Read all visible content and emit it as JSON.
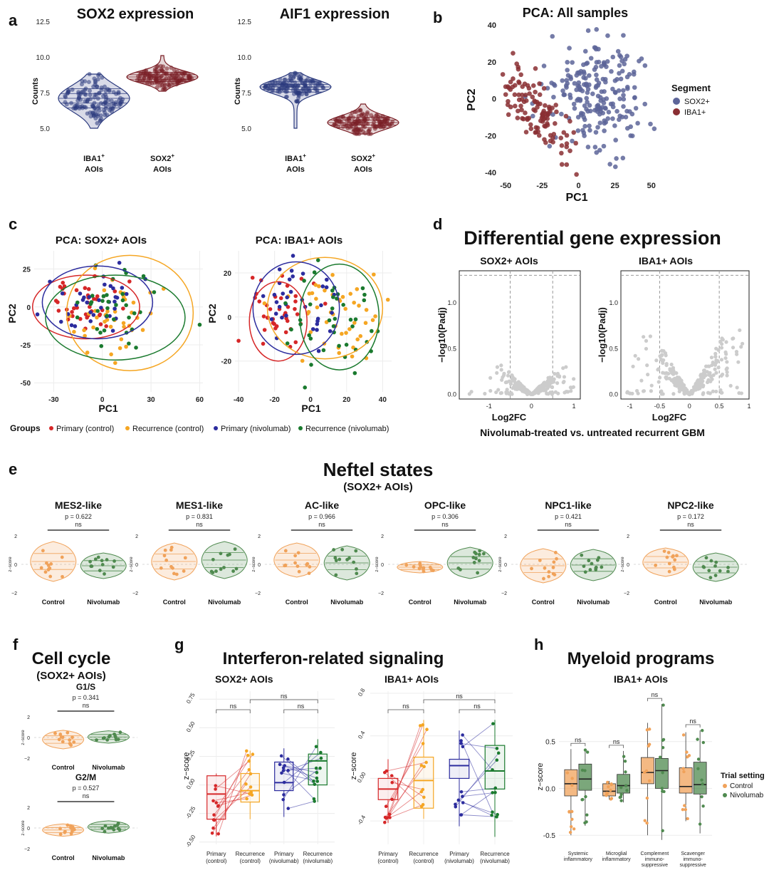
{
  "colors": {
    "navy": "#2b3a7e",
    "maroon": "#7a1f26",
    "pca_sox2": "#5d6599",
    "pca_iba1": "#8a2f33",
    "primary_control": "#d62728",
    "recurrence_control": "#f5a623",
    "primary_nivolumab": "#2c2c9e",
    "recurrence_nivolumab": "#1a7a2e",
    "control": "#f0a25a",
    "nivolumab": "#4f8a4f",
    "volcano_points": "#cccccc"
  },
  "panels": {
    "a": {
      "letter": "a",
      "yaxis_label": "Counts",
      "y_ticks": [
        "5.0",
        "7.5",
        "10.0",
        "12.5"
      ],
      "plots": [
        {
          "title": "SOX2 expression",
          "groups": [
            {
              "label": "IBA1",
              "sup": "+",
              "sub": "AOIs"
            },
            {
              "label": "SOX2",
              "sup": "+",
              "sub": "AOIs"
            }
          ]
        },
        {
          "title": "AIF1 expression",
          "groups": [
            {
              "label": "IBA1",
              "sup": "+",
              "sub": "AOIs"
            },
            {
              "label": "SOX2",
              "sup": "+",
              "sub": "AOIs"
            }
          ]
        }
      ]
    },
    "b": {
      "letter": "b",
      "legend_title": "Segment",
      "legend_items": [
        "SOX2+",
        "IBA1+"
      ]
    },
    "c": {
      "letter": "c",
      "groups_title": "Groups",
      "groups": [
        "Primary (control)",
        "Recurrence (control)",
        "Primary (nivolumab)",
        "Recurrence (nivolumab)"
      ]
    },
    "d": {
      "letter": "d",
      "title": "Differential gene expression",
      "subtitle": "Nivolumab-treated vs. untreated recurrent GBM"
    },
    "e": {
      "letter": "e",
      "title": "Neftel states",
      "subtitle": "(SOX2+ AOIs)",
      "yaxis_label": "z−score",
      "y_ticks": [
        "2",
        "0",
        "−2"
      ],
      "x_labels": [
        "Control",
        "Nivolumab"
      ],
      "states": [
        {
          "name": "MES2-like",
          "p": "p = 0.622",
          "sig": "ns"
        },
        {
          "name": "MES1-like",
          "p": "p = 0.831",
          "sig": "ns"
        },
        {
          "name": "AC-like",
          "p": "p = 0.966",
          "sig": "ns"
        },
        {
          "name": "OPC-like",
          "p": "p = 0.306",
          "sig": "ns"
        },
        {
          "name": "NPC1-like",
          "p": "p = 0.421",
          "sig": "ns"
        },
        {
          "name": "NPC2-like",
          "p": "p = 0.172",
          "sig": "ns"
        }
      ]
    },
    "f": {
      "letter": "f",
      "title": "Cell cycle",
      "subtitle": "(SOX2+ AOIs)",
      "yaxis_label": "z−score",
      "y_ticks": [
        "2",
        "0",
        "−2"
      ],
      "x_labels": [
        "Control",
        "Nivolumab"
      ],
      "phases": [
        {
          "name": "G1/S",
          "p": "p = 0.341",
          "sig": "ns"
        },
        {
          "name": "G2/M",
          "p": "p = 0.527",
          "sig": "ns"
        }
      ]
    },
    "g": {
      "letter": "g",
      "title": "Interferon-related signaling",
      "yaxis_label": "z−score",
      "x_labels": [
        [
          "Primary",
          "(control)"
        ],
        [
          "Recurrence",
          "(control)"
        ],
        [
          "Primary",
          "(nivolumab)"
        ],
        [
          "Recurrence",
          "(nivolumab)"
        ]
      ],
      "sig": "ns"
    },
    "h": {
      "letter": "h",
      "title": "Myeloid programs",
      "subtitle": "IBA1+ AOIs",
      "yaxis_label": "z−score",
      "legend_title": "Trial setting",
      "legend_items": [
        "Control",
        "Nivolumab"
      ],
      "sig": "ns",
      "categories": [
        [
          "Systemic",
          "inflammatory"
        ],
        [
          "Microglial",
          "inflammatory"
        ],
        [
          "Complement",
          "immuno-",
          "suppressive"
        ],
        [
          "Scavenger",
          "immuno-",
          "suppressive"
        ]
      ]
    }
  },
  "chart_data": [
    {
      "id": "a1",
      "type": "violin",
      "title": "SOX2 expression",
      "ylabel": "Counts",
      "ylim": [
        4.5,
        12.5
      ],
      "categories": [
        "IBA1+ AOIs",
        "SOX2+ AOIs"
      ],
      "series": [
        {
          "name": "IBA1+ AOIs",
          "color": "#2b3a7e",
          "center": 7.1,
          "spread": 0.75,
          "min": 5.0,
          "max": 8.8
        },
        {
          "name": "SOX2+ AOIs",
          "color": "#7a1f26",
          "center": 8.6,
          "spread": 0.35,
          "min": 7.6,
          "max": 10.1
        }
      ]
    },
    {
      "id": "a2",
      "type": "violin",
      "title": "AIF1 expression",
      "ylabel": "Counts",
      "ylim": [
        4.5,
        12.5
      ],
      "categories": [
        "IBA1+ AOIs",
        "SOX2+ AOIs"
      ],
      "series": [
        {
          "name": "IBA1+ AOIs",
          "color": "#2b3a7e",
          "center": 7.9,
          "spread": 0.4,
          "min": 5.0,
          "max": 8.9
        },
        {
          "name": "SOX2+ AOIs",
          "color": "#7a1f26",
          "center": 5.4,
          "spread": 0.4,
          "min": 4.6,
          "max": 6.7
        }
      ]
    },
    {
      "id": "b",
      "type": "scatter",
      "title": "PCA: All samples",
      "xlabel": "PC1",
      "ylabel": "PC2",
      "xlim": [
        -55,
        55
      ],
      "ylim": [
        -43,
        42
      ],
      "x_ticks": [
        -50,
        -25,
        0,
        25,
        50
      ],
      "y_ticks": [
        -40,
        -20,
        0,
        20,
        40
      ],
      "series": [
        {
          "name": "SOX2+",
          "color": "#5d6599",
          "n": 220,
          "cx": 15,
          "cy": 2,
          "sx": 16,
          "sy": 15
        },
        {
          "name": "IBA1+",
          "color": "#8a2f33",
          "n": 120,
          "cx": -28,
          "cy": -8,
          "sx": 11,
          "sy": 16
        }
      ]
    },
    {
      "id": "c1",
      "type": "scatter",
      "title": "PCA: SOX2+ AOIs",
      "xlabel": "PC1",
      "ylabel": "PC2",
      "xlim": [
        -42,
        62
      ],
      "ylim": [
        -56,
        37
      ],
      "x_ticks": [
        -30,
        0,
        30,
        60
      ],
      "y_ticks": [
        -50,
        -25,
        0,
        25
      ],
      "series": [
        {
          "name": "Primary (control)",
          "color": "#d62728",
          "n": 40,
          "cx": -12,
          "cy": 2,
          "sx": 12,
          "sy": 9
        },
        {
          "name": "Recurrence (control)",
          "color": "#f5a623",
          "n": 40,
          "cx": 8,
          "cy": -8,
          "sx": 17,
          "sy": 15
        },
        {
          "name": "Primary (nivolumab)",
          "color": "#2c2c9e",
          "n": 35,
          "cx": -5,
          "cy": 2,
          "sx": 14,
          "sy": 11
        },
        {
          "name": "Recurrence (nivolumab)",
          "color": "#1a7a2e",
          "n": 35,
          "cx": 5,
          "cy": -3,
          "sx": 17,
          "sy": 13
        }
      ],
      "ellipses": [
        {
          "series": "Primary (control)",
          "cx": -10,
          "cy": 0,
          "rx": 33,
          "ry": 21
        },
        {
          "series": "Recurrence (control)",
          "cx": 17,
          "cy": -4,
          "rx": 39,
          "ry": 38
        },
        {
          "series": "Primary (nivolumab)",
          "cx": -3,
          "cy": 3,
          "rx": 34,
          "ry": 24
        },
        {
          "series": "Recurrence (nivolumab)",
          "cx": 8,
          "cy": -7,
          "rx": 43,
          "ry": 28
        }
      ]
    },
    {
      "id": "c2",
      "type": "scatter",
      "title": "PCA: IBA1+ AOIs",
      "xlabel": "PC1",
      "ylabel": "PC2",
      "xlim": [
        -42,
        45
      ],
      "ylim": [
        -34,
        30
      ],
      "x_ticks": [
        -40,
        -20,
        0,
        20,
        40
      ],
      "y_ticks": [
        -20,
        0,
        20
      ],
      "series": [
        {
          "name": "Primary (control)",
          "color": "#d62728",
          "n": 40,
          "cx": -18,
          "cy": 2,
          "sx": 9,
          "sy": 8
        },
        {
          "name": "Recurrence (control)",
          "color": "#f5a623",
          "n": 45,
          "cx": 12,
          "cy": 0,
          "sx": 12,
          "sy": 11
        },
        {
          "name": "Primary (nivolumab)",
          "color": "#2c2c9e",
          "n": 35,
          "cx": -5,
          "cy": 4,
          "sx": 12,
          "sy": 10
        },
        {
          "name": "Recurrence (nivolumab)",
          "color": "#1a7a2e",
          "n": 40,
          "cx": 12,
          "cy": -2,
          "sx": 13,
          "sy": 11
        }
      ],
      "ellipses": [
        {
          "series": "Primary (control)",
          "cx": -18,
          "cy": -2,
          "rx": 16,
          "ry": 18
        },
        {
          "series": "Recurrence (control)",
          "cx": 8,
          "cy": 4,
          "rx": 32,
          "ry": 23
        },
        {
          "series": "Primary (nivolumab)",
          "cx": -8,
          "cy": 4,
          "rx": 24,
          "ry": 21
        },
        {
          "series": "Recurrence (nivolumab)",
          "cx": 16,
          "cy": 0,
          "rx": 22,
          "ry": 24
        }
      ]
    },
    {
      "id": "d1",
      "type": "scatter",
      "subtype": "volcano",
      "title": "SOX2+ AOIs",
      "xlabel": "Log2FC",
      "ylabel": "−log10(Padj)",
      "xlim": [
        -1.7,
        1.15
      ],
      "ylim": [
        -0.05,
        1.35
      ],
      "x_ticks": [
        -1,
        0,
        1
      ],
      "y_ticks": [
        0.0,
        0.5,
        1.0
      ],
      "thresholds": {
        "x": [
          -0.5,
          0.5
        ],
        "y": 1.3
      },
      "shape": {
        "peak": 0.35,
        "max_x": 1.05,
        "min_x": -1.6
      }
    },
    {
      "id": "d2",
      "type": "scatter",
      "subtype": "volcano",
      "title": "IBA1+ AOIs",
      "xlabel": "Log2FC",
      "ylabel": "−log10(Padj)",
      "xlim": [
        -1.15,
        1.0
      ],
      "ylim": [
        -0.05,
        1.35
      ],
      "x_ticks": [
        -1.0,
        -0.5,
        0.0,
        0.5,
        1.0
      ],
      "y_ticks": [
        0.0,
        0.5,
        1.0
      ],
      "thresholds": {
        "x": [
          -0.5,
          0.5
        ],
        "y": 1.3
      },
      "shape": {
        "peak": 0.85,
        "max_x": 0.95,
        "min_x": -1.1
      }
    },
    {
      "id": "e",
      "type": "violin",
      "ylabel": "z-score",
      "ylim": [
        -2,
        2
      ],
      "categories": [
        "Control",
        "Nivolumab"
      ],
      "panels": [
        {
          "title": "MES2-like",
          "p": 0.622,
          "control": {
            "median": 0.2,
            "spread": 0.7
          },
          "nivolumab": {
            "median": -0.1,
            "spread": 0.45
          }
        },
        {
          "title": "MES1-like",
          "p": 0.831,
          "control": {
            "median": 0.2,
            "spread": 0.65
          },
          "nivolumab": {
            "median": 0.3,
            "spread": 0.65
          }
        },
        {
          "title": "AC-like",
          "p": 0.966,
          "control": {
            "median": 0.3,
            "spread": 0.6
          },
          "nivolumab": {
            "median": 0.1,
            "spread": 0.6
          }
        },
        {
          "title": "OPC-like",
          "p": 0.306,
          "control": {
            "median": -0.2,
            "spread": 0.2
          },
          "nivolumab": {
            "median": 0.1,
            "spread": 0.55
          }
        },
        {
          "title": "NPC1-like",
          "p": 0.421,
          "control": {
            "median": -0.1,
            "spread": 0.6
          },
          "nivolumab": {
            "median": -0.05,
            "spread": 0.55
          }
        },
        {
          "title": "NPC2-like",
          "p": 0.172,
          "control": {
            "median": 0.15,
            "spread": 0.5
          },
          "nivolumab": {
            "median": -0.2,
            "spread": 0.5
          }
        }
      ]
    },
    {
      "id": "f",
      "type": "violin",
      "ylabel": "z-score",
      "ylim": [
        -2,
        2
      ],
      "categories": [
        "Control",
        "Nivolumab"
      ],
      "panels": [
        {
          "title": "G1/S",
          "p": 0.341,
          "control": {
            "median": -0.2,
            "spread": 0.45
          },
          "nivolumab": {
            "median": 0.05,
            "spread": 0.3
          }
        },
        {
          "title": "G2/M",
          "p": 0.527,
          "control": {
            "median": -0.2,
            "spread": 0.3
          },
          "nivolumab": {
            "median": 0.1,
            "spread": 0.3
          }
        }
      ]
    },
    {
      "id": "g1",
      "type": "box",
      "title": "SOX2+ AOIs",
      "ylabel": "z-score",
      "ylim": [
        -0.52,
        0.82
      ],
      "y_ticks": [
        -0.5,
        -0.25,
        0.0,
        0.25,
        0.5,
        0.75
      ],
      "categories": [
        "Primary (control)",
        "Recurrence (control)",
        "Primary (nivolumab)",
        "Recurrence (nivolumab)"
      ],
      "boxes": [
        {
          "q1": -0.3,
          "median": -0.08,
          "q3": 0.08,
          "min": -0.45,
          "max": 0.1
        },
        {
          "q1": -0.15,
          "median": -0.05,
          "q3": 0.1,
          "min": -0.3,
          "max": 0.3
        },
        {
          "q1": -0.05,
          "median": 0.02,
          "q3": 0.2,
          "min": -0.28,
          "max": 0.32
        },
        {
          "q1": 0.0,
          "median": 0.21,
          "q3": 0.27,
          "min": -0.15,
          "max": 0.4
        }
      ]
    },
    {
      "id": "g2",
      "type": "box",
      "title": "IBA1+ AOIs",
      "ylabel": "z-score",
      "ylim": [
        -0.62,
        0.82
      ],
      "y_ticks": [
        -0.4,
        0.0,
        0.4,
        0.8
      ],
      "categories": [
        "Primary (control)",
        "Recurrence (control)",
        "Primary (nivolumab)",
        "Recurrence (nivolumab)"
      ],
      "boxes": [
        {
          "q1": -0.2,
          "median": -0.1,
          "q3": 0.0,
          "min": -0.42,
          "max": 0.18
        },
        {
          "q1": -0.28,
          "median": -0.02,
          "q3": 0.2,
          "min": -0.38,
          "max": 0.55
        },
        {
          "q1": 0.0,
          "median": 0.12,
          "q3": 0.18,
          "min": -0.45,
          "max": 0.45
        },
        {
          "q1": -0.1,
          "median": 0.07,
          "q3": 0.31,
          "min": -0.55,
          "max": 0.55
        }
      ]
    },
    {
      "id": "h",
      "type": "box",
      "title": "Myeloid programs — IBA1+ AOIs",
      "ylabel": "z-score",
      "ylim": [
        -0.62,
        1.0
      ],
      "y_ticks": [
        -0.5,
        0.0,
        0.5
      ],
      "categories": [
        "Systemic inflammatory",
        "Microglial inflammatory",
        "Complement immuno-suppressive",
        "Scavenger immuno-suppressive"
      ],
      "series": [
        {
          "name": "Control",
          "boxes": [
            {
              "q1": -0.08,
              "median": 0.05,
              "q3": 0.2,
              "min": -0.5,
              "max": 0.42
            },
            {
              "q1": -0.08,
              "median": -0.03,
              "q3": 0.05,
              "min": -0.12,
              "max": 0.08
            },
            {
              "q1": 0.05,
              "median": 0.17,
              "q3": 0.33,
              "min": -0.5,
              "max": 0.7
            },
            {
              "q1": -0.05,
              "median": 0.02,
              "q3": 0.22,
              "min": -0.35,
              "max": 0.6
            }
          ]
        },
        {
          "name": "Nivolumab",
          "boxes": [
            {
              "q1": -0.02,
              "median": 0.1,
              "q3": 0.26,
              "min": -0.4,
              "max": 0.42
            },
            {
              "q1": -0.05,
              "median": 0.03,
              "q3": 0.15,
              "min": -0.15,
              "max": 0.4
            },
            {
              "q1": 0.0,
              "median": 0.19,
              "q3": 0.32,
              "min": -0.55,
              "max": 0.9
            },
            {
              "q1": -0.06,
              "median": 0.04,
              "q3": 0.28,
              "min": -0.48,
              "max": 0.62
            }
          ]
        }
      ]
    }
  ]
}
